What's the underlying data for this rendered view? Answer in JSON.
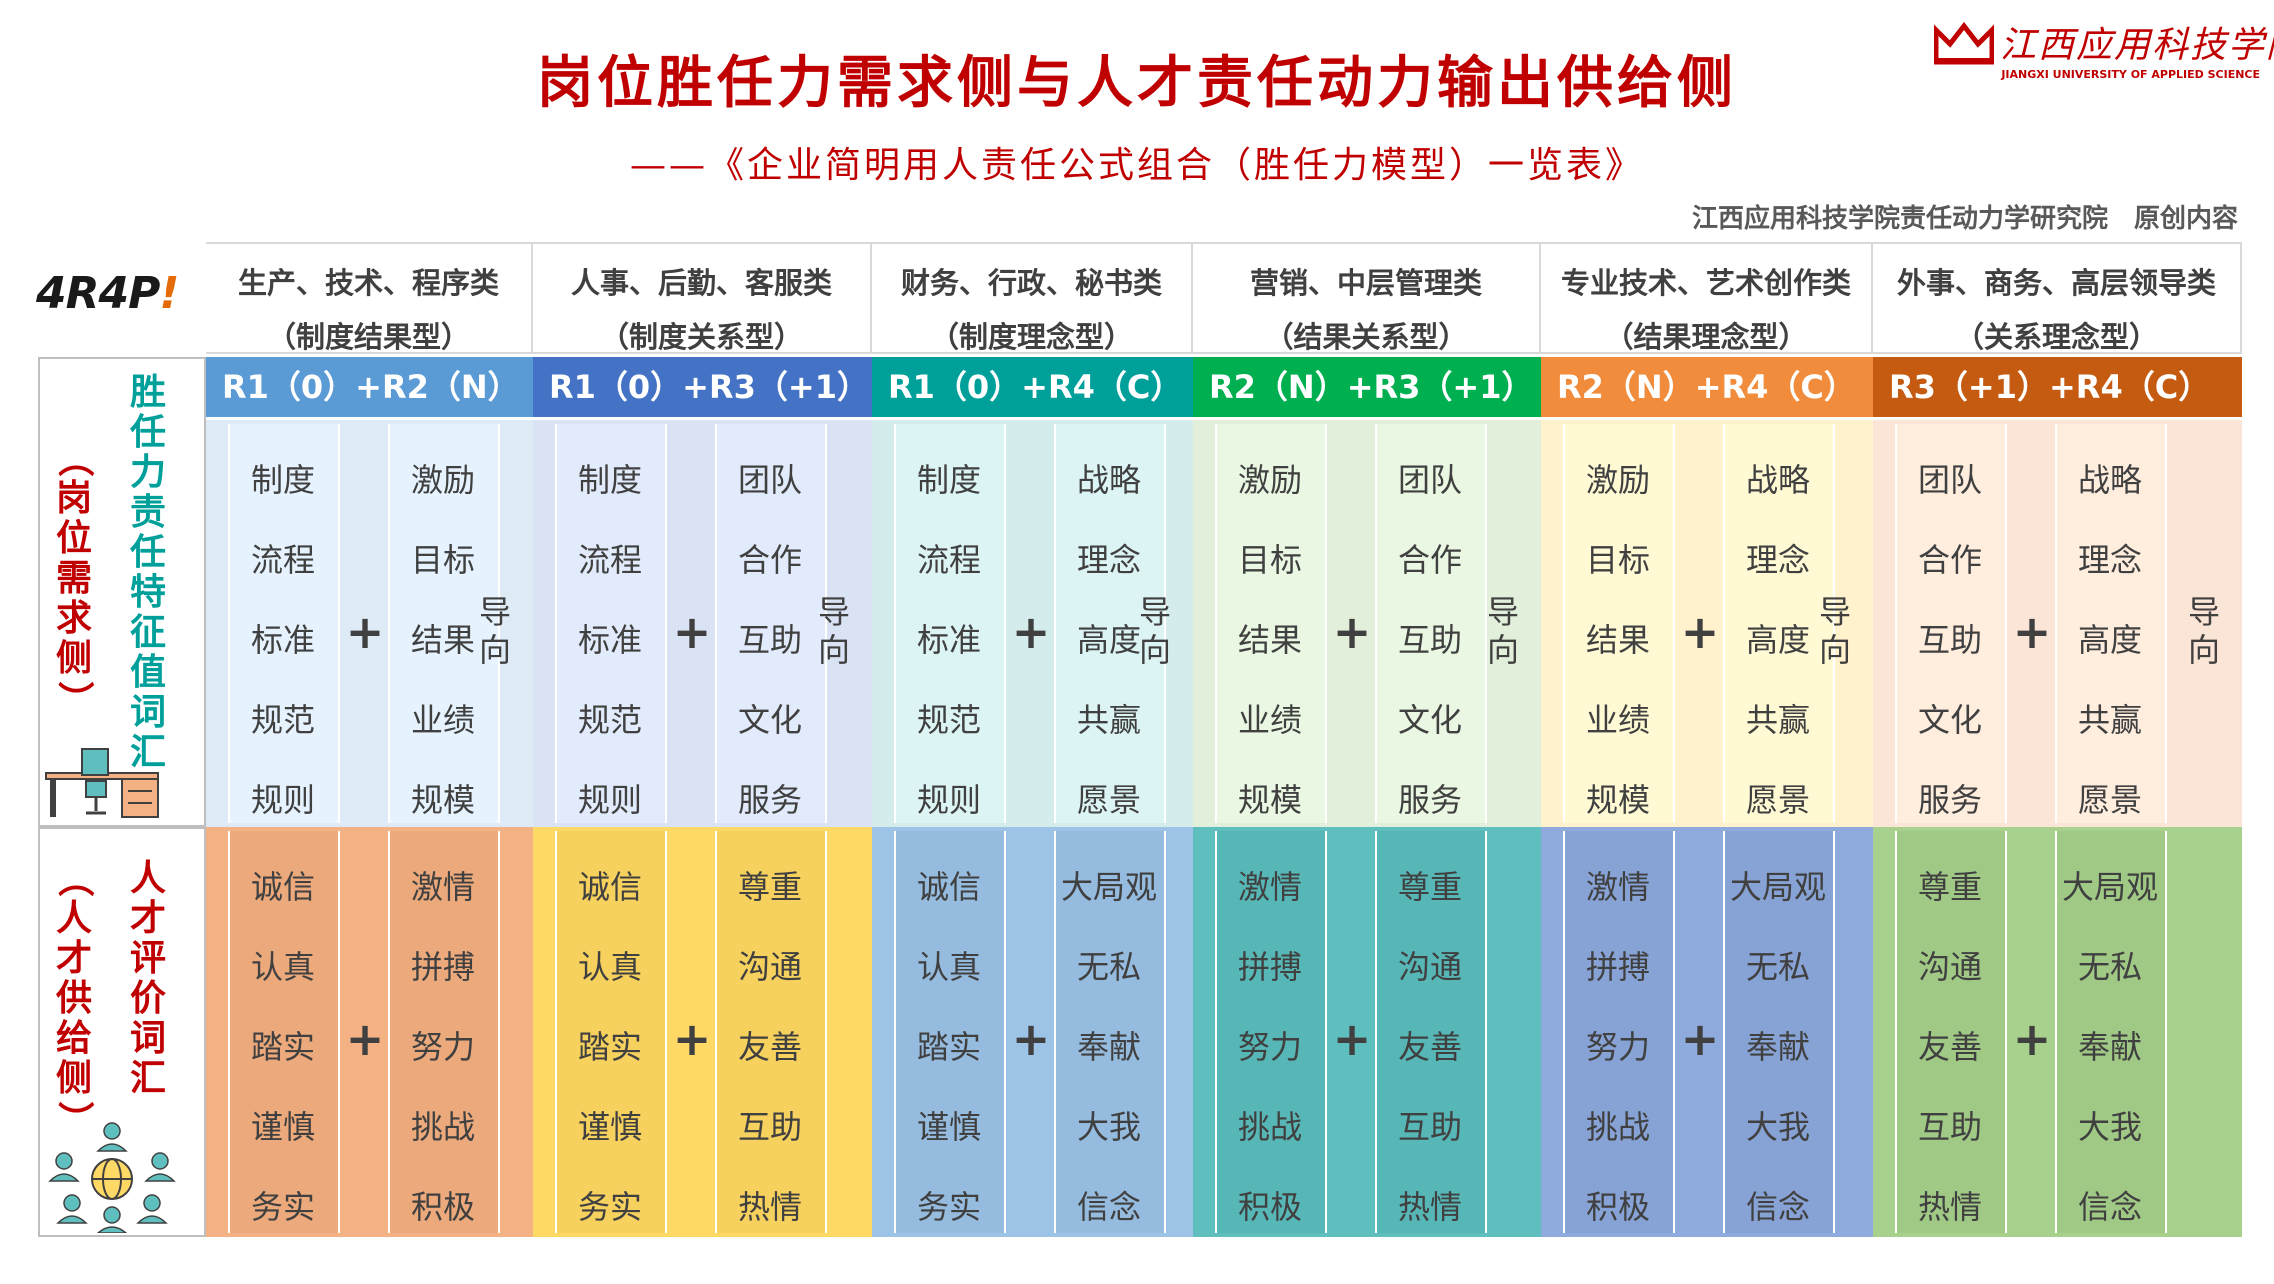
{
  "header": {
    "title": "岗位胜任力需求侧与人才责任动力输出供给侧",
    "subtitle": "——《企业简明用人责任公式组合（胜任力模型）一览表》",
    "credit": "江西应用科技学院责任动力学研究院　原创内容",
    "university_cn": "江西应用科技学院",
    "university_en": "JIANGXI UNIVERSITY OF APPLIED SCIENCE",
    "brand_logo": "4R4P!"
  },
  "side": {
    "demand_label": "胜任力责任特征值词汇",
    "demand_sub": "（岗位需求侧）",
    "supply_label": "人才评价词汇",
    "supply_sub": "（人才供给侧）"
  },
  "plus_sign": "+",
  "direction_label": "导向",
  "columns": [
    {
      "category": "生产、技术、程序类",
      "type": "（制度结果型）",
      "formula": "R1（0）+R2（N）",
      "band_color": "#5b9bd5",
      "top_bg": "#deebf7",
      "bottom_bg": "#f4b183",
      "demand_left": [
        "制度",
        "流程",
        "标准",
        "规范",
        "规则"
      ],
      "demand_right": [
        "激励",
        "目标",
        "结果",
        "业绩",
        "规模"
      ],
      "supply_left": [
        "诚信",
        "认真",
        "踏实",
        "谨慎",
        "务实"
      ],
      "supply_right": [
        "激情",
        "拼搏",
        "努力",
        "挑战",
        "积极"
      ]
    },
    {
      "category": "人事、后勤、客服类",
      "type": "（制度关系型）",
      "formula": "R1（0）+R3（+1）",
      "band_color": "#4472c4",
      "top_bg": "#dae3f3",
      "bottom_bg": "#ffd966",
      "demand_left": [
        "制度",
        "流程",
        "标准",
        "规范",
        "规则"
      ],
      "demand_right": [
        "团队",
        "合作",
        "互助",
        "文化",
        "服务"
      ],
      "supply_left": [
        "诚信",
        "认真",
        "踏实",
        "谨慎",
        "务实"
      ],
      "supply_right": [
        "尊重",
        "沟通",
        "友善",
        "互助",
        "热情"
      ]
    },
    {
      "category": "财务、行政、秘书类",
      "type": "（制度理念型）",
      "formula": "R1（0）+R4（C）",
      "band_color": "#00a09a",
      "top_bg": "#d5ecec",
      "bottom_bg": "#9dc3e6",
      "demand_left": [
        "制度",
        "流程",
        "标准",
        "规范",
        "规则"
      ],
      "demand_right": [
        "战略",
        "理念",
        "高度",
        "共赢",
        "愿景"
      ],
      "supply_left": [
        "诚信",
        "认真",
        "踏实",
        "谨慎",
        "务实"
      ],
      "supply_right": [
        "大局观",
        "无私",
        "奉献",
        "大我",
        "信念"
      ]
    },
    {
      "category": "营销、中层管理类",
      "type": "（结果关系型）",
      "formula": "R2（N）+R3（+1）",
      "band_color": "#00b050",
      "top_bg": "#e2efda",
      "bottom_bg": "#5fbfbf",
      "demand_left": [
        "激励",
        "目标",
        "结果",
        "业绩",
        "规模"
      ],
      "demand_right": [
        "团队",
        "合作",
        "互助",
        "文化",
        "服务"
      ],
      "supply_left": [
        "激情",
        "拼搏",
        "努力",
        "挑战",
        "积极"
      ],
      "supply_right": [
        "尊重",
        "沟通",
        "友善",
        "互助",
        "热情"
      ]
    },
    {
      "category": "专业技术、艺术创作类",
      "type": "（结果理念型）",
      "formula": "R2（N）+R4（C）",
      "band_color": "#f08c3c",
      "top_bg": "#fff2cc",
      "bottom_bg": "#8faadc",
      "demand_left": [
        "激励",
        "目标",
        "结果",
        "业绩",
        "规模"
      ],
      "demand_right": [
        "战略",
        "理念",
        "高度",
        "共赢",
        "愿景"
      ],
      "supply_left": [
        "激情",
        "拼搏",
        "努力",
        "挑战",
        "积极"
      ],
      "supply_right": [
        "大局观",
        "无私",
        "奉献",
        "大我",
        "信念"
      ]
    },
    {
      "category": "外事、商务、高层领导类",
      "type": "（关系理念型）",
      "formula": "R3（+1）+R4（C）",
      "band_color": "#c55a11",
      "top_bg": "#fbe5d6",
      "bottom_bg": "#a9d18e",
      "demand_left": [
        "团队",
        "合作",
        "互助",
        "文化",
        "服务"
      ],
      "demand_right": [
        "战略",
        "理念",
        "高度",
        "共赢",
        "愿景"
      ],
      "supply_left": [
        "尊重",
        "沟通",
        "友善",
        "互助",
        "热情"
      ],
      "supply_right": [
        "大局观",
        "无私",
        "奉献",
        "大我",
        "信念"
      ]
    }
  ]
}
